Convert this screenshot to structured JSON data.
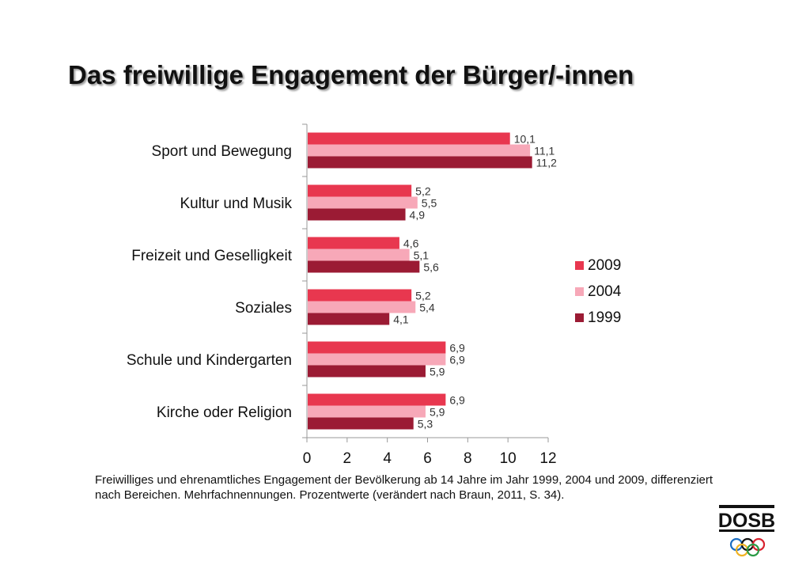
{
  "title": "Das freiwillige Engagement der Bürger/-innen",
  "caption": "Freiwilliges und ehrenamtliches Engagement der Bevölkerung ab 14 Jahre im Jahr 1999, 2004 und 2009, differenziert nach Bereichen. Mehrfachnennungen. Prozentwerte (verändert nach Braun, 2011, S. 34).",
  "logo": {
    "text": "DOSB",
    "icon": "olympic-rings-icon"
  },
  "chart_data": {
    "type": "bar",
    "orientation": "horizontal",
    "categories": [
      "Sport und Bewegung",
      "Kultur und Musik",
      "Freizeit und Geselligkeit",
      "Soziales",
      "Schule und Kindergarten",
      "Kirche oder Religion"
    ],
    "series": [
      {
        "name": "2009",
        "color": "#e8374f",
        "values": [
          10.1,
          5.2,
          4.6,
          5.2,
          6.9,
          6.9
        ],
        "labels": [
          "10,1",
          "5,2",
          "4,6",
          "5,2",
          "6,9",
          "6,9"
        ]
      },
      {
        "name": "2004",
        "color": "#f7a8b8",
        "values": [
          11.1,
          5.5,
          5.1,
          5.4,
          6.9,
          5.9
        ],
        "labels": [
          "11,1",
          "5,5",
          "5,1",
          "5,4",
          "6,9",
          "5,9"
        ]
      },
      {
        "name": "1999",
        "color": "#9b1b34",
        "values": [
          11.2,
          4.9,
          5.6,
          4.1,
          5.9,
          5.3
        ],
        "labels": [
          "11,2",
          "4,9",
          "5,6",
          "4,1",
          "5,9",
          "5,3"
        ]
      }
    ],
    "xlim": [
      0,
      12
    ],
    "xticks": [
      0,
      2,
      4,
      6,
      8,
      10,
      12
    ],
    "grid": false,
    "legend_position": "right"
  }
}
